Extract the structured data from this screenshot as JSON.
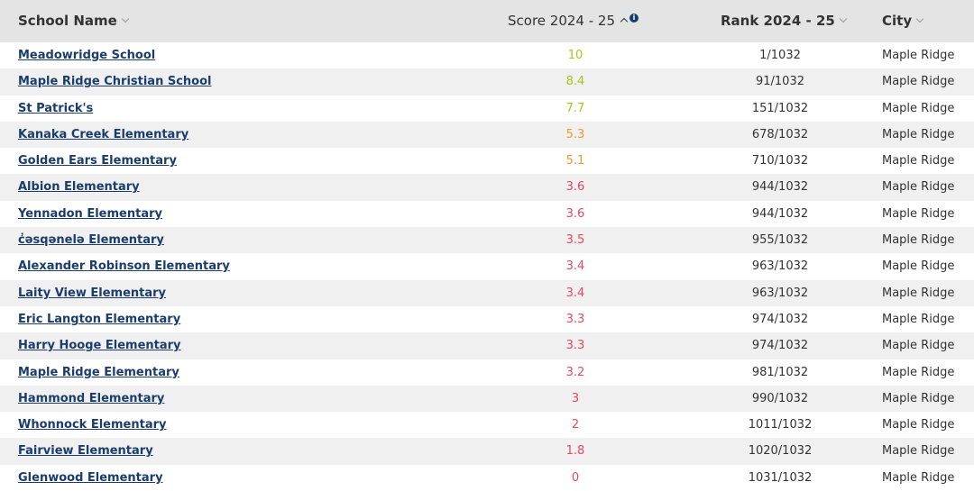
{
  "table": {
    "columns": [
      "School Name",
      "Score 2024 - 25",
      "Rank 2024 - 25",
      "City"
    ],
    "rows": [
      {
        "name": "Meadowridge School",
        "score": 10,
        "rank": "1/1032",
        "city": "Maple Ridge",
        "score_color": "#a6c41c"
      },
      {
        "name": "Maple Ridge Christian School",
        "score": 8.4,
        "rank": "91/1032",
        "city": "Maple Ridge",
        "score_color": "#a6c41c"
      },
      {
        "name": "St Patrick's",
        "score": 7.7,
        "rank": "151/1032",
        "city": "Maple Ridge",
        "score_color": "#a6c41c"
      },
      {
        "name": "Kanaka Creek Elementary",
        "score": 5.3,
        "rank": "678/1032",
        "city": "Maple Ridge",
        "score_color": "#ef9a2a"
      },
      {
        "name": "Golden Ears Elementary",
        "score": 5.1,
        "rank": "710/1032",
        "city": "Maple Ridge",
        "score_color": "#ef9a2a"
      },
      {
        "name": "Albion Elementary",
        "score": 3.6,
        "rank": "944/1032",
        "city": "Maple Ridge",
        "score_color": "#e8475c"
      },
      {
        "name": "Yennadon Elementary",
        "score": 3.6,
        "rank": "944/1032",
        "city": "Maple Ridge",
        "score_color": "#e8475c"
      },
      {
        "name": "c̓əsqənelə Elementary",
        "score": 3.5,
        "rank": "955/1032",
        "city": "Maple Ridge",
        "score_color": "#e8475c"
      },
      {
        "name": "Alexander Robinson Elementary",
        "score": 3.4,
        "rank": "963/1032",
        "city": "Maple Ridge",
        "score_color": "#e8475c"
      },
      {
        "name": "Laity View Elementary",
        "score": 3.4,
        "rank": "963/1032",
        "city": "Maple Ridge",
        "score_color": "#e8475c"
      },
      {
        "name": "Eric Langton Elementary",
        "score": 3.3,
        "rank": "974/1032",
        "city": "Maple Ridge",
        "score_color": "#e8475c"
      },
      {
        "name": "Harry Hooge Elementary",
        "score": 3.3,
        "rank": "974/1032",
        "city": "Maple Ridge",
        "score_color": "#e8475c"
      },
      {
        "name": "Maple Ridge Elementary",
        "score": 3.2,
        "rank": "981/1032",
        "city": "Maple Ridge",
        "score_color": "#e8475c"
      },
      {
        "name": "Hammond Elementary",
        "score": 3,
        "rank": "990/1032",
        "city": "Maple Ridge",
        "score_color": "#e8475c"
      },
      {
        "name": "Whonnock Elementary",
        "score": 2,
        "rank": "1011/1032",
        "city": "Maple Ridge",
        "score_color": "#e8475c"
      },
      {
        "name": "Fairview Elementary",
        "score": 1.8,
        "rank": "1020/1032",
        "city": "Maple Ridge",
        "score_color": "#e8475c"
      },
      {
        "name": "Glenwood Elementary",
        "score": 0,
        "rank": "1031/1032",
        "city": "Maple Ridge",
        "score_color": "#e8475c"
      }
    ]
  }
}
